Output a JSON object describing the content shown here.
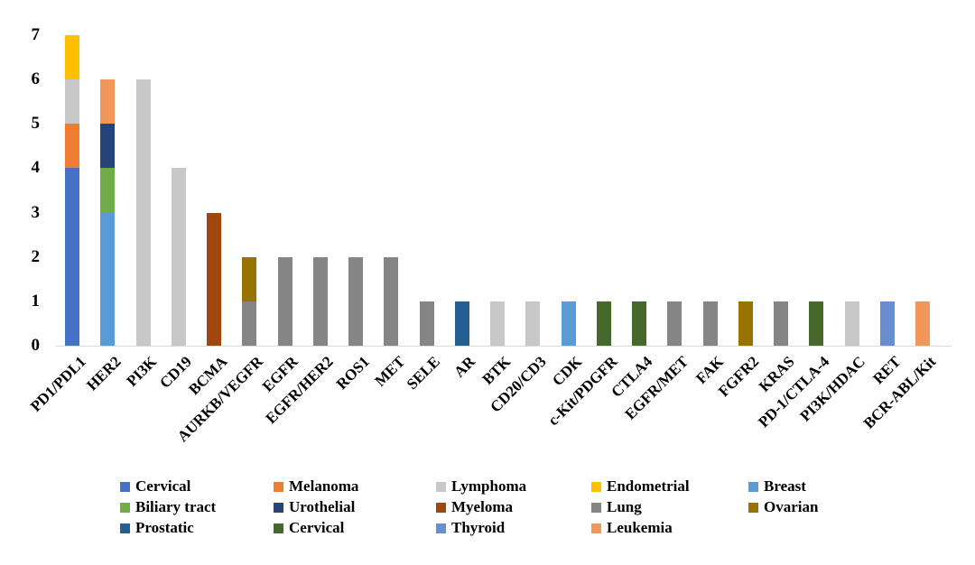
{
  "page": {
    "background": "#ffffff"
  },
  "chart_data": {
    "type": "bar",
    "stacked": true,
    "orientation": "vertical",
    "title": "",
    "xlabel": "",
    "ylabel": "",
    "ylim": [
      0,
      7
    ],
    "yticks": [
      "0",
      "1",
      "2",
      "3",
      "4",
      "5",
      "6",
      "7"
    ],
    "grid": false,
    "axis_line_color": "#d9d9d9",
    "legend_position": "bottom",
    "legend_columns": 5,
    "categories": [
      "PD1/PDL1",
      "HER2",
      "PI3K",
      "CD19",
      "BCMA",
      "AURKB/VEGFR",
      "EGFR",
      "EGFR/HER2",
      "ROS1",
      "MET",
      "SELE",
      "AR",
      "BTK",
      "CD20/CD3",
      "CDK",
      "c-Kit/PDGFR",
      "CTLA4",
      "EGFR/MET",
      "FAK",
      "FGFR2",
      "KRAS",
      "PD-1/CTLA-4",
      "PI3K/HDAC",
      "RET",
      "BCR-ABL/Kit"
    ],
    "series": [
      {
        "name": "Cervical",
        "color": "#4472C4",
        "values": [
          4,
          0,
          0,
          0,
          0,
          0,
          0,
          0,
          0,
          0,
          0,
          0,
          0,
          0,
          0,
          0,
          0,
          0,
          0,
          0,
          0,
          0,
          0,
          0,
          0
        ]
      },
      {
        "name": "Melanoma",
        "color": "#ED7D31",
        "values": [
          1,
          0,
          0,
          0,
          0,
          0,
          0,
          0,
          0,
          0,
          0,
          0,
          0,
          0,
          0,
          0,
          0,
          0,
          0,
          0,
          0,
          0,
          0,
          0,
          0
        ]
      },
      {
        "name": "Lymphoma",
        "color": "#C8C8C8",
        "values": [
          1,
          0,
          6,
          4,
          0,
          0,
          0,
          0,
          0,
          0,
          0,
          0,
          1,
          1,
          0,
          0,
          0,
          0,
          0,
          0,
          0,
          0,
          1,
          0,
          0
        ]
      },
      {
        "name": "Endometrial",
        "color": "#FFC000",
        "values": [
          1,
          0,
          0,
          0,
          0,
          0,
          0,
          0,
          0,
          0,
          0,
          0,
          0,
          0,
          0,
          0,
          0,
          0,
          0,
          0,
          0,
          0,
          0,
          0,
          0
        ]
      },
      {
        "name": "Breast",
        "color": "#5B9BD5",
        "values": [
          0,
          3,
          0,
          0,
          0,
          0,
          0,
          0,
          0,
          0,
          0,
          0,
          0,
          0,
          1,
          0,
          0,
          0,
          0,
          0,
          0,
          0,
          0,
          0,
          0
        ]
      },
      {
        "name": "Biliary tract",
        "color": "#70AD47",
        "values": [
          0,
          1,
          0,
          0,
          0,
          0,
          0,
          0,
          0,
          0,
          0,
          0,
          0,
          0,
          0,
          0,
          0,
          0,
          0,
          0,
          0,
          0,
          0,
          0,
          0
        ]
      },
      {
        "name": "Urothelial",
        "color": "#264478",
        "values": [
          0,
          1,
          0,
          0,
          0,
          0,
          0,
          0,
          0,
          0,
          0,
          0,
          0,
          0,
          0,
          0,
          0,
          0,
          0,
          0,
          0,
          0,
          0,
          0,
          0
        ]
      },
      {
        "name": "Myeloma",
        "color": "#9E480E",
        "values": [
          0,
          0,
          0,
          0,
          3,
          0,
          0,
          0,
          0,
          0,
          0,
          0,
          0,
          0,
          0,
          0,
          0,
          0,
          0,
          0,
          0,
          0,
          0,
          0,
          0
        ]
      },
      {
        "name": "Lung",
        "color": "#858585",
        "values": [
          0,
          0,
          0,
          0,
          0,
          1,
          2,
          2,
          2,
          2,
          1,
          0,
          0,
          0,
          0,
          0,
          0,
          1,
          1,
          0,
          1,
          0,
          0,
          0,
          0
        ]
      },
      {
        "name": "Ovarian",
        "color": "#997300",
        "values": [
          0,
          0,
          0,
          0,
          0,
          1,
          0,
          0,
          0,
          0,
          0,
          0,
          0,
          0,
          0,
          0,
          0,
          0,
          0,
          1,
          0,
          0,
          0,
          0,
          0
        ]
      },
      {
        "name": "Prostatic",
        "color": "#255E91",
        "values": [
          0,
          0,
          0,
          0,
          0,
          0,
          0,
          0,
          0,
          0,
          0,
          1,
          0,
          0,
          0,
          0,
          0,
          0,
          0,
          0,
          0,
          0,
          0,
          0,
          0
        ]
      },
      {
        "name": "Cervical",
        "color": "#47682B",
        "values": [
          0,
          0,
          0,
          0,
          0,
          0,
          0,
          0,
          0,
          0,
          0,
          0,
          0,
          0,
          0,
          1,
          1,
          0,
          0,
          0,
          0,
          1,
          0,
          0,
          0
        ]
      },
      {
        "name": "Thyroid",
        "color": "#698ED0",
        "values": [
          0,
          0,
          0,
          0,
          0,
          0,
          0,
          0,
          0,
          0,
          0,
          0,
          0,
          0,
          0,
          0,
          0,
          0,
          0,
          0,
          0,
          0,
          0,
          1,
          0
        ]
      },
      {
        "name": "Leukemia",
        "color": "#F1975A",
        "values": [
          0,
          1,
          0,
          0,
          0,
          0,
          0,
          0,
          0,
          0,
          0,
          0,
          0,
          0,
          0,
          0,
          0,
          0,
          0,
          0,
          0,
          0,
          0,
          0,
          1
        ]
      }
    ]
  }
}
